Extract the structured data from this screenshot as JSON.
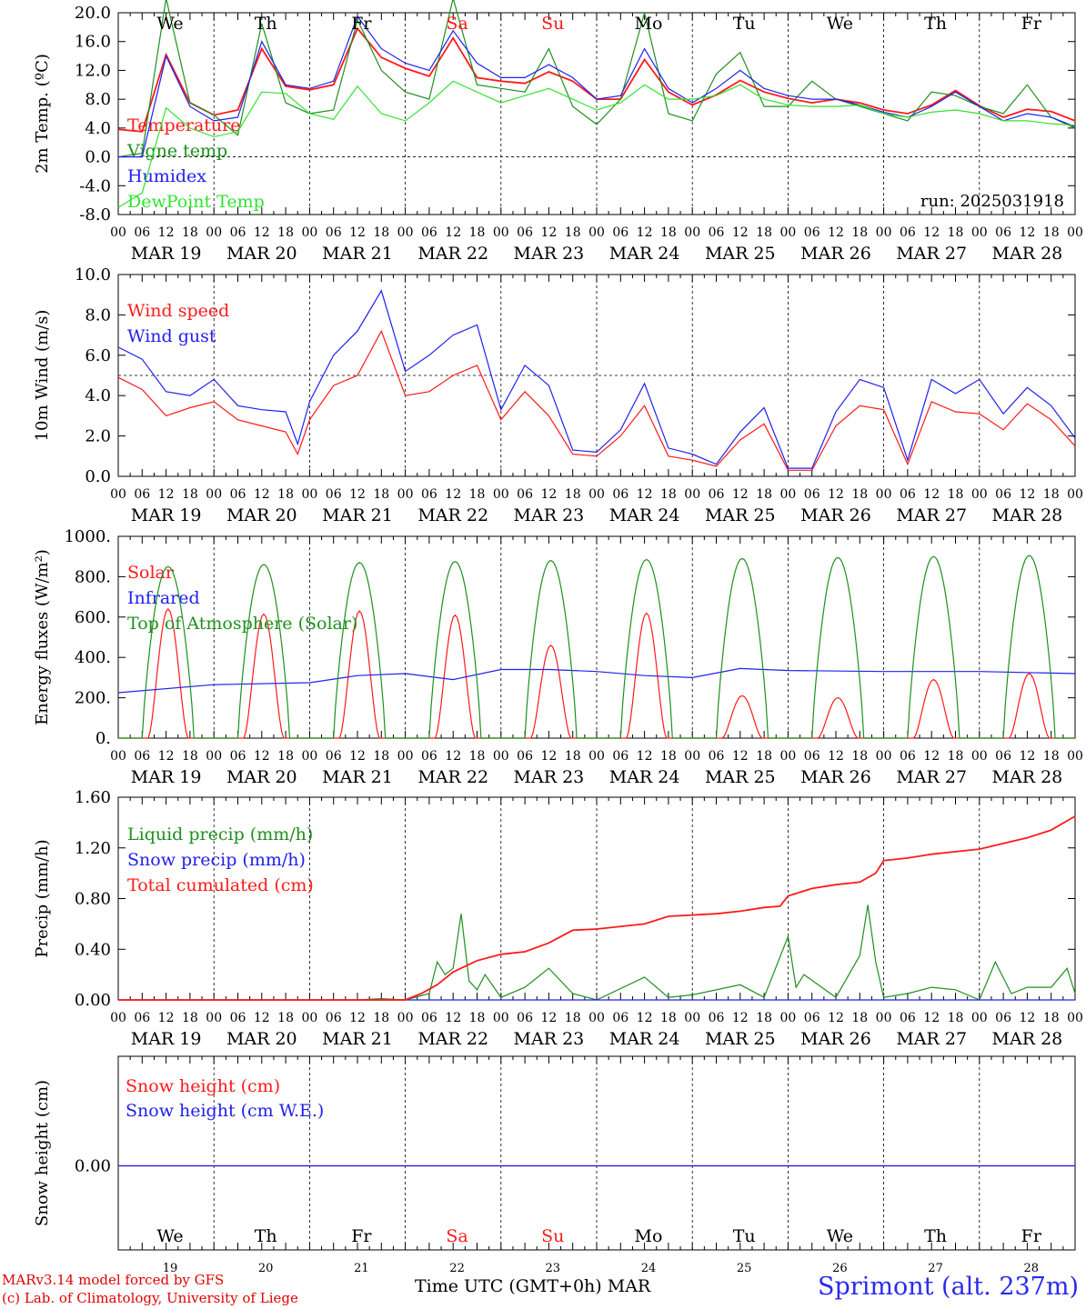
{
  "meta": {
    "run_label": "run: 2025031918",
    "x_title": "Time UTC (GMT+0h)",
    "month": "MAR",
    "station": "Sprimont (alt. 237m)",
    "credit_1": "MARv3.14 model forced by GFS",
    "credit_2": "(c) Lab. of Climatology, University of Liege"
  },
  "colors": {
    "red": "#ff1a1a",
    "green": "#1f8f1f",
    "blue": "#2020ee",
    "lightgreen": "#33e233",
    "weekend": "#ff1a1a",
    "weekday": "#000000"
  },
  "days": {
    "names": [
      "We",
      "Th",
      "Fr",
      "Sa",
      "Su",
      "Mo",
      "Tu",
      "We",
      "Th",
      "Fr"
    ],
    "weekend": [
      false,
      false,
      false,
      true,
      true,
      false,
      false,
      false,
      false,
      false
    ],
    "dates": [
      "MAR 19",
      "MAR 20",
      "MAR 21",
      "MAR 22",
      "MAR 23",
      "MAR 24",
      "MAR 25",
      "MAR 26",
      "MAR 27",
      "MAR 28"
    ],
    "numbers": [
      "19",
      "20",
      "21",
      "22",
      "23",
      "24",
      "25",
      "26",
      "27",
      "28"
    ],
    "hour_labels": [
      "00",
      "06",
      "12",
      "18"
    ]
  },
  "chart_data": [
    {
      "type": "line",
      "ylabel": "2m Temp. (ºC)",
      "ylim": [
        -8,
        20
      ],
      "yticks": [
        "20.0",
        "16.0",
        "12.0",
        "8.0",
        "4.0",
        "0.0",
        "-4.0",
        "-8.0"
      ],
      "reference_line": 0,
      "legend_placement": "left",
      "x_unit": "hours since MAR 19 00 UTC",
      "series": [
        {
          "name": "Temperature",
          "color": "red",
          "x": [
            0,
            6,
            12,
            18,
            24,
            30,
            36,
            42,
            48,
            54,
            60,
            66,
            72,
            78,
            84,
            90,
            96,
            102,
            108,
            114,
            120,
            126,
            132,
            138,
            144,
            150,
            156,
            162,
            168,
            174,
            180,
            186,
            192,
            198,
            204,
            210,
            216,
            222,
            228,
            234,
            240
          ],
          "y": [
            3.8,
            3.5,
            14.2,
            7.5,
            5.8,
            6.5,
            15.0,
            9.8,
            9.3,
            10.0,
            17.8,
            13.8,
            12.3,
            11.2,
            16.5,
            11.0,
            10.5,
            10.2,
            11.8,
            10.5,
            8.0,
            8.0,
            13.5,
            9.0,
            7.2,
            8.6,
            10.6,
            9.0,
            8.1,
            7.5,
            8.0,
            7.5,
            6.5,
            6.0,
            7.2,
            9.2,
            7.1,
            5.5,
            6.6,
            6.3,
            5.0
          ]
        },
        {
          "name": "Vigne temp",
          "color": "green",
          "x": [
            0,
            6,
            12,
            18,
            24,
            30,
            36,
            42,
            48,
            54,
            60,
            66,
            72,
            78,
            84,
            90,
            96,
            102,
            108,
            114,
            120,
            126,
            132,
            138,
            144,
            150,
            156,
            162,
            168,
            174,
            180,
            186,
            192,
            198,
            204,
            210,
            216,
            222,
            228,
            234,
            240
          ],
          "y": [
            0.0,
            0.5,
            22.0,
            7.5,
            5.8,
            3.0,
            18.5,
            7.5,
            6.0,
            6.5,
            19.0,
            12.0,
            9.0,
            8.0,
            22.0,
            10.0,
            9.5,
            9.0,
            15.0,
            7.0,
            4.5,
            8.0,
            20.0,
            6.0,
            5.0,
            11.5,
            14.5,
            7.0,
            7.0,
            10.5,
            8.0,
            7.0,
            6.0,
            5.0,
            9.0,
            8.5,
            7.0,
            6.0,
            10.0,
            5.5,
            4.0
          ]
        },
        {
          "name": "Humidex",
          "color": "blue",
          "x": [
            0,
            6,
            12,
            18,
            24,
            30,
            36,
            42,
            48,
            54,
            60,
            66,
            72,
            78,
            84,
            90,
            96,
            102,
            108,
            114,
            120,
            126,
            132,
            138,
            144,
            150,
            156,
            162,
            168,
            174,
            180,
            186,
            192,
            198,
            204,
            210,
            216,
            222,
            228,
            234,
            240
          ],
          "y": [
            0.0,
            0.0,
            14.0,
            7.0,
            5.0,
            5.5,
            16.0,
            10.0,
            9.5,
            10.5,
            19.5,
            15.0,
            13.0,
            12.0,
            17.5,
            13.0,
            11.0,
            11.0,
            12.8,
            11.0,
            8.0,
            8.5,
            15.0,
            9.5,
            7.5,
            9.5,
            12.0,
            9.5,
            8.5,
            8.0,
            8.0,
            7.2,
            6.2,
            5.5,
            7.0,
            9.0,
            7.0,
            5.0,
            6.0,
            5.5,
            4.2
          ]
        },
        {
          "name": "DewPoint Temp",
          "color": "lightgreen",
          "x": [
            0,
            6,
            12,
            18,
            24,
            30,
            36,
            42,
            48,
            54,
            60,
            66,
            72,
            78,
            84,
            90,
            96,
            102,
            108,
            114,
            120,
            126,
            132,
            138,
            144,
            150,
            156,
            162,
            168,
            174,
            180,
            186,
            192,
            198,
            204,
            210,
            216,
            222,
            228,
            234,
            240
          ],
          "y": [
            -7.0,
            -5.0,
            6.8,
            4.0,
            2.8,
            3.5,
            9.0,
            8.8,
            6.0,
            5.2,
            9.8,
            6.0,
            5.0,
            7.5,
            10.5,
            9.0,
            7.5,
            8.5,
            9.5,
            8.0,
            6.5,
            7.5,
            10.0,
            8.0,
            8.0,
            8.5,
            10.0,
            8.0,
            7.2,
            7.0,
            7.0,
            7.2,
            6.0,
            5.5,
            6.2,
            6.5,
            6.0,
            5.0,
            5.0,
            4.6,
            4.4
          ]
        }
      ]
    },
    {
      "type": "line",
      "ylabel": "10m Wind (m/s)",
      "ylim": [
        0,
        10
      ],
      "yticks": [
        "10.0",
        "8.0",
        "6.0",
        "4.0",
        "2.0",
        "0.0"
      ],
      "reference_line": 5,
      "legend_placement": "left",
      "x_unit": "hours since MAR 19 00 UTC",
      "series": [
        {
          "name": "Wind speed",
          "color": "red",
          "x": [
            0,
            6,
            12,
            18,
            24,
            30,
            36,
            42,
            45,
            48,
            54,
            60,
            66,
            72,
            78,
            84,
            90,
            96,
            102,
            108,
            114,
            120,
            126,
            132,
            138,
            144,
            150,
            156,
            162,
            168,
            174,
            180,
            186,
            192,
            198,
            204,
            210,
            216,
            222,
            228,
            234,
            240
          ],
          "y": [
            4.9,
            4.3,
            3.0,
            3.4,
            3.7,
            2.8,
            2.5,
            2.2,
            1.1,
            2.8,
            4.5,
            5.0,
            7.2,
            4.0,
            4.2,
            5.0,
            5.5,
            2.8,
            4.2,
            3.0,
            1.1,
            1.0,
            2.0,
            3.5,
            1.0,
            0.8,
            0.5,
            1.8,
            2.6,
            0.3,
            0.3,
            2.5,
            3.5,
            3.3,
            0.6,
            3.7,
            3.2,
            3.1,
            2.3,
            3.6,
            2.8,
            1.5
          ]
        },
        {
          "name": "Wind gust",
          "color": "blue",
          "x": [
            0,
            6,
            12,
            18,
            24,
            30,
            36,
            42,
            45,
            48,
            54,
            60,
            66,
            72,
            78,
            84,
            90,
            96,
            102,
            108,
            114,
            120,
            126,
            132,
            138,
            144,
            150,
            156,
            162,
            168,
            174,
            180,
            186,
            192,
            198,
            204,
            210,
            216,
            222,
            228,
            234,
            240
          ],
          "y": [
            6.4,
            5.8,
            4.2,
            4.0,
            4.8,
            3.5,
            3.3,
            3.2,
            1.6,
            3.7,
            6.0,
            7.2,
            9.2,
            5.2,
            6.0,
            7.0,
            7.5,
            3.3,
            5.5,
            4.5,
            1.3,
            1.2,
            2.3,
            4.6,
            1.4,
            1.1,
            0.6,
            2.2,
            3.4,
            0.4,
            0.4,
            3.2,
            4.8,
            4.4,
            0.8,
            4.8,
            4.1,
            4.8,
            3.1,
            4.4,
            3.5,
            1.9
          ]
        }
      ]
    },
    {
      "type": "line",
      "ylabel": "Energy fluxes (W/m²)",
      "ylim": [
        0,
        1000
      ],
      "yticks": [
        "1000.",
        "800.",
        "600.",
        "400.",
        "200.",
        "0."
      ],
      "legend_placement": "left",
      "x_unit": "hours since MAR 19 00 UTC",
      "series": [
        {
          "name": "Solar",
          "color": "red",
          "day_peaks": [
            640,
            615,
            630,
            610,
            460,
            620,
            210,
            200,
            290,
            320
          ]
        },
        {
          "name": "Infrared",
          "color": "blue",
          "x": [
            0,
            24,
            48,
            60,
            72,
            84,
            96,
            108,
            120,
            132,
            144,
            156,
            168,
            192,
            216,
            240
          ],
          "y": [
            225,
            265,
            275,
            310,
            320,
            290,
            340,
            340,
            330,
            310,
            300,
            345,
            335,
            330,
            330,
            320
          ]
        },
        {
          "name": "Top of Atmosphere (Solar)",
          "color": "green",
          "day_peaks": [
            850,
            860,
            870,
            875,
            880,
            885,
            890,
            895,
            900,
            905
          ]
        }
      ]
    },
    {
      "type": "line",
      "ylabel": "Precip (mm/h)",
      "ylim": [
        0,
        1.6
      ],
      "yticks": [
        "1.60",
        "1.20",
        "0.80",
        "0.40",
        "0.00"
      ],
      "legend_placement": "left",
      "x_unit": "hours since MAR 19 00 UTC",
      "series": [
        {
          "name": "Liquid precip (mm/h)",
          "color": "green",
          "x": [
            0,
            60,
            66,
            72,
            78,
            80,
            82,
            84,
            86,
            88,
            90,
            92,
            96,
            102,
            108,
            114,
            120,
            132,
            138,
            144,
            156,
            162,
            168,
            170,
            172,
            180,
            186,
            188,
            190,
            192,
            198,
            204,
            210,
            216,
            220,
            224,
            228,
            234,
            238,
            240
          ],
          "y": [
            0,
            0,
            0.01,
            0,
            0.05,
            0.3,
            0.2,
            0.25,
            0.68,
            0.15,
            0.08,
            0.2,
            0.02,
            0.1,
            0.25,
            0.05,
            0,
            0.18,
            0.02,
            0.04,
            0.12,
            0.02,
            0.5,
            0.1,
            0.2,
            0.02,
            0.35,
            0.75,
            0.3,
            0.02,
            0.05,
            0.1,
            0.08,
            0,
            0.3,
            0.05,
            0.1,
            0.1,
            0.25,
            0.05
          ]
        },
        {
          "name": "Snow precip (mm/h)",
          "color": "blue",
          "x": [
            0,
            240
          ],
          "y": [
            0,
            0
          ]
        },
        {
          "name": "Total cumulated (cm)",
          "color": "red",
          "x": [
            0,
            72,
            76,
            80,
            84,
            90,
            96,
            102,
            108,
            114,
            120,
            132,
            138,
            144,
            150,
            156,
            162,
            166,
            168,
            174,
            180,
            186,
            190,
            192,
            198,
            204,
            210,
            216,
            224,
            228,
            234,
            240
          ],
          "y": [
            0,
            0,
            0.05,
            0.12,
            0.22,
            0.31,
            0.36,
            0.38,
            0.45,
            0.55,
            0.56,
            0.6,
            0.66,
            0.67,
            0.68,
            0.7,
            0.73,
            0.74,
            0.82,
            0.88,
            0.91,
            0.93,
            1.0,
            1.1,
            1.12,
            1.15,
            1.17,
            1.19,
            1.25,
            1.28,
            1.34,
            1.45
          ]
        }
      ]
    },
    {
      "type": "line",
      "ylabel": "Snow height (cm)",
      "yticks": [
        "0.00"
      ],
      "legend_placement": "left",
      "x_unit": "hours since MAR 19 00 UTC",
      "series": [
        {
          "name": "Snow height (cm)",
          "color": "red",
          "x": [
            0,
            240
          ],
          "y": [
            0,
            0
          ]
        },
        {
          "name": "Snow height (cm W.E.)",
          "color": "blue",
          "x": [
            0,
            240
          ],
          "y": [
            0,
            0
          ]
        }
      ]
    }
  ]
}
